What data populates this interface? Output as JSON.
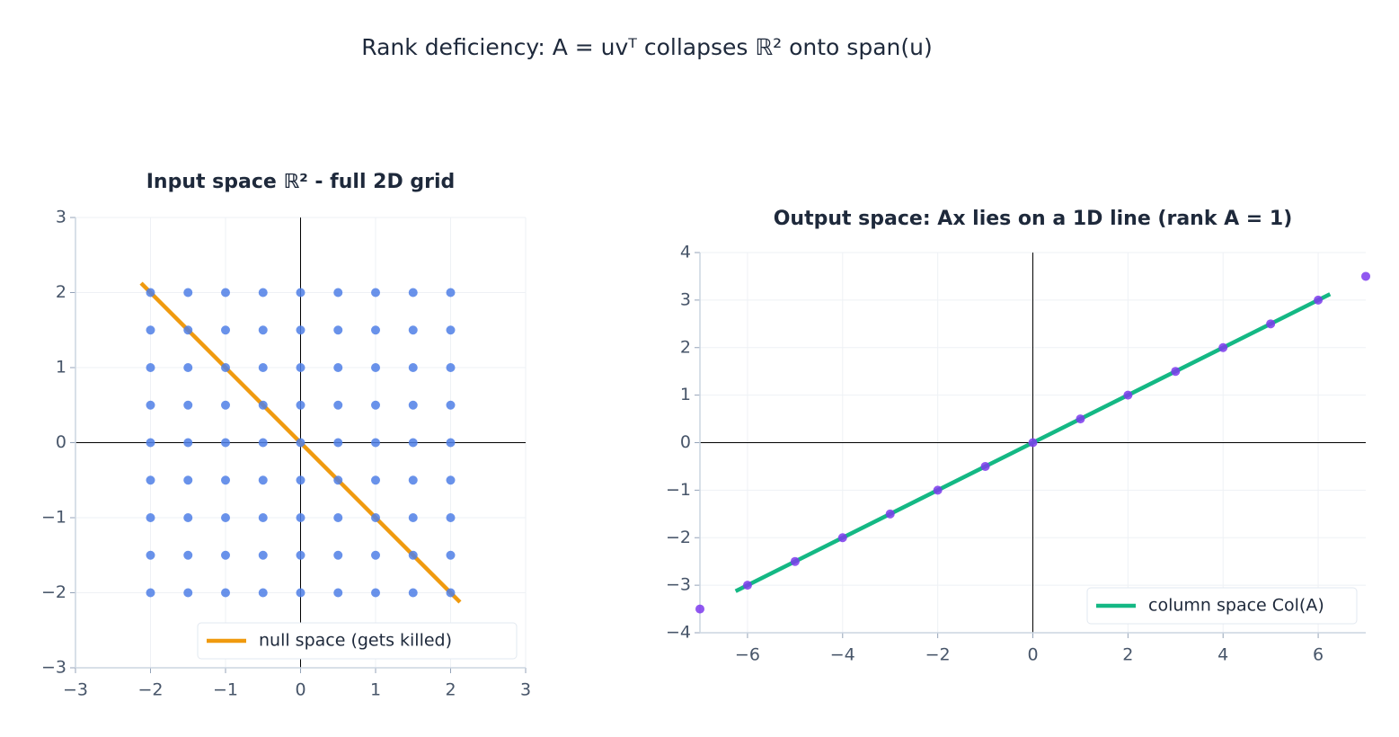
{
  "title": "Rank deficiency:  A = uvᵀ  collapses ℝ² onto span(u)",
  "chart_data": [
    {
      "type": "scatter",
      "title": "Input space ℝ²  -  full 2D grid",
      "points": {
        "color": "#4f7fe6",
        "x": [
          -2,
          -1.5,
          -1,
          -0.5,
          0,
          0.5,
          1,
          1.5,
          2,
          -2,
          -1.5,
          -1,
          -0.5,
          0,
          0.5,
          1,
          1.5,
          2,
          -2,
          -1.5,
          -1,
          -0.5,
          0,
          0.5,
          1,
          1.5,
          2,
          -2,
          -1.5,
          -1,
          -0.5,
          0,
          0.5,
          1,
          1.5,
          2,
          -2,
          -1.5,
          -1,
          -0.5,
          0,
          0.5,
          1,
          1.5,
          2,
          -2,
          -1.5,
          -1,
          -0.5,
          0,
          0.5,
          1,
          1.5,
          2,
          -2,
          -1.5,
          -1,
          -0.5,
          0,
          0.5,
          1,
          1.5,
          2,
          -2,
          -1.5,
          -1,
          -0.5,
          0,
          0.5,
          1,
          1.5,
          2,
          -2,
          -1.5,
          -1,
          -0.5,
          0,
          0.5,
          1,
          1.5,
          2
        ],
        "y": [
          2,
          2,
          2,
          2,
          2,
          2,
          2,
          2,
          2,
          1.5,
          1.5,
          1.5,
          1.5,
          1.5,
          1.5,
          1.5,
          1.5,
          1.5,
          1,
          1,
          1,
          1,
          1,
          1,
          1,
          1,
          1,
          0.5,
          0.5,
          0.5,
          0.5,
          0.5,
          0.5,
          0.5,
          0.5,
          0.5,
          0,
          0,
          0,
          0,
          0,
          0,
          0,
          0,
          0,
          -0.5,
          -0.5,
          -0.5,
          -0.5,
          -0.5,
          -0.5,
          -0.5,
          -0.5,
          -0.5,
          -1,
          -1,
          -1,
          -1,
          -1,
          -1,
          -1,
          -1,
          -1,
          -1.5,
          -1.5,
          -1.5,
          -1.5,
          -1.5,
          -1.5,
          -1.5,
          -1.5,
          -1.5,
          -2,
          -2,
          -2,
          -2,
          -2,
          -2,
          -2,
          -2,
          -2
        ]
      },
      "series": [
        {
          "name": "null space  (gets killed)",
          "color": "#f09a0e",
          "x": [
            -2.125,
            2.125
          ],
          "values": [
            2.125,
            -2.125
          ]
        }
      ],
      "xlim": [
        -3,
        3
      ],
      "ylim": [
        -3,
        3
      ],
      "xticks": [
        {
          "value": -3,
          "label": "−3"
        },
        {
          "value": -2,
          "label": "−2"
        },
        {
          "value": -1,
          "label": "−1"
        },
        0,
        1,
        2,
        3
      ],
      "yticks": [
        {
          "value": -3,
          "label": "−3"
        },
        {
          "value": -2,
          "label": "−2"
        },
        {
          "value": -1,
          "label": "−1"
        },
        0,
        1,
        2,
        3
      ],
      "grid": true,
      "legend": "lower right"
    },
    {
      "type": "scatter",
      "title": "Output space:  Ax  lies on a 1D line  (rank A = 1)",
      "points": {
        "color": "#7c3aed",
        "x": [
          -7,
          -6,
          -5,
          -4,
          -3,
          -2,
          -1,
          0,
          1,
          2,
          3,
          4,
          5,
          6,
          7
        ],
        "y": [
          -3.5,
          -3,
          -2.5,
          -2,
          -1.5,
          -1,
          -0.5,
          0,
          0.5,
          1,
          1.5,
          2,
          2.5,
          3,
          3.5
        ]
      },
      "series": [
        {
          "name": "column space  Col(A)",
          "color": "#14b884",
          "x": [
            -6.25,
            6.25
          ],
          "values": [
            -3.125,
            3.125
          ]
        }
      ],
      "xlim": [
        -7,
        7
      ],
      "ylim": [
        -4,
        4
      ],
      "xticks": [
        {
          "value": -6,
          "label": "−6"
        },
        {
          "value": -4,
          "label": "−4"
        },
        {
          "value": -2,
          "label": "−2"
        },
        0,
        2,
        4,
        6
      ],
      "yticks": [
        {
          "value": -4,
          "label": "−4"
        },
        {
          "value": -3,
          "label": "−3"
        },
        {
          "value": -2,
          "label": "−2"
        },
        {
          "value": -1,
          "label": "−1"
        },
        0,
        1,
        2,
        3,
        4
      ],
      "grid": true,
      "legend": "lower right"
    }
  ]
}
